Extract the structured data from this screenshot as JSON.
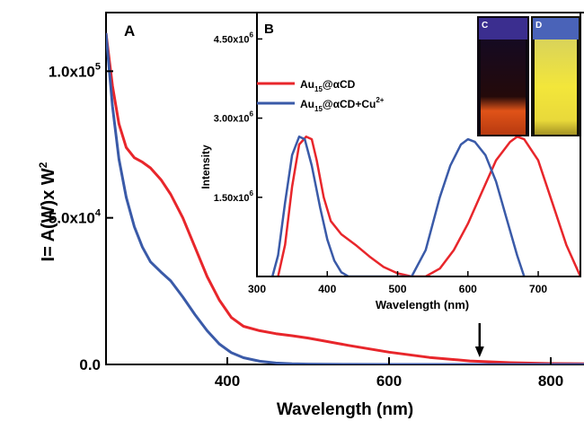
{
  "chart_data": [
    {
      "id": "main",
      "type": "line",
      "panel_label": "A",
      "xlabel": "Wavelength (nm)",
      "ylabel": "I= A(W)x W",
      "ylabel_superscript": "2",
      "xlim": [
        250,
        850
      ],
      "ylim": [
        0,
        120000
      ],
      "x_ticks": [
        400,
        600,
        800
      ],
      "y_ticks": [
        {
          "value": 0,
          "label": "0.0",
          "sup": ""
        },
        {
          "value": 50000,
          "label": "5.0x10",
          "sup": "4"
        },
        {
          "value": 100000,
          "label": "1.0x10",
          "sup": "5"
        }
      ],
      "arrow_x": 712,
      "series": [
        {
          "color": "#e8262b",
          "x": [
            250,
            258,
            266,
            275,
            285,
            295,
            305,
            318,
            330,
            345,
            360,
            375,
            390,
            405,
            420,
            440,
            460,
            480,
            500,
            550,
            600,
            650,
            700,
            750,
            800,
            850
          ],
          "y": [
            113000,
            95000,
            82000,
            74000,
            70500,
            69000,
            67000,
            63000,
            58000,
            50000,
            40000,
            30000,
            22000,
            16000,
            13000,
            11500,
            10500,
            9800,
            9000,
            6500,
            4200,
            2400,
            1200,
            600,
            300,
            200
          ]
        },
        {
          "color": "#3a5aa8",
          "x": [
            250,
            258,
            266,
            275,
            285,
            295,
            305,
            318,
            330,
            345,
            360,
            375,
            390,
            405,
            420,
            440,
            460,
            480,
            500,
            550,
            600,
            650,
            700,
            750,
            800,
            850
          ],
          "y": [
            113000,
            88000,
            70000,
            57000,
            47000,
            40000,
            35000,
            31500,
            28500,
            23000,
            17000,
            11500,
            7000,
            4000,
            2300,
            1100,
            500,
            250,
            120,
            40,
            10,
            0,
            0,
            0,
            0,
            0
          ]
        }
      ]
    },
    {
      "id": "inset",
      "type": "line",
      "panel_label": "B",
      "xlabel": "Wavelength (nm)",
      "ylabel": "Intensity",
      "xlim": [
        300,
        760
      ],
      "ylim": [
        0,
        5000000
      ],
      "x_ticks": [
        300,
        400,
        500,
        600,
        700
      ],
      "y_ticks": [
        {
          "value": 1500000,
          "label": "1.50x10",
          "sup": "6"
        },
        {
          "value": 3000000,
          "label": "3.00x10",
          "sup": "6"
        },
        {
          "value": 4500000,
          "label": "4.50x10",
          "sup": "6"
        }
      ],
      "legend": [
        {
          "color": "#e8262b",
          "label": "Au",
          "sub": "15",
          "rest": "@αCD",
          "sup": ""
        },
        {
          "color": "#3a5aa8",
          "label": "Au",
          "sub": "15",
          "rest": "@αCD+Cu",
          "sup": "2+"
        }
      ],
      "series": [
        {
          "color": "#e8262b",
          "x": [
            330,
            340,
            350,
            360,
            370,
            378,
            385,
            395,
            405,
            420,
            440,
            460,
            480,
            500,
            520,
            540,
            560,
            580,
            600,
            620,
            640,
            660,
            670,
            680,
            700,
            720,
            740,
            760
          ],
          "y": [
            0,
            600000,
            1700000,
            2500000,
            2650000,
            2600000,
            2200000,
            1500000,
            1050000,
            800000,
            600000,
            380000,
            180000,
            60000,
            0,
            0,
            150000,
            500000,
            1000000,
            1600000,
            2200000,
            2550000,
            2650000,
            2600000,
            2200000,
            1400000,
            600000,
            0
          ]
        },
        {
          "color": "#3a5aa8",
          "x": [
            322,
            330,
            340,
            350,
            360,
            368,
            378,
            390,
            400,
            410,
            420,
            430,
            500,
            520,
            540,
            560,
            575,
            590,
            600,
            610,
            625,
            640,
            655,
            670,
            680
          ],
          "y": [
            0,
            400000,
            1400000,
            2300000,
            2650000,
            2600000,
            2100000,
            1300000,
            700000,
            300000,
            80000,
            0,
            0,
            0,
            500000,
            1500000,
            2100000,
            2500000,
            2600000,
            2550000,
            2300000,
            1800000,
            1100000,
            400000,
            0
          ]
        }
      ]
    }
  ],
  "photos": [
    {
      "label": "C",
      "sample_color": "#e05318"
    },
    {
      "label": "D",
      "sample_color": "#f3e63a"
    }
  ]
}
